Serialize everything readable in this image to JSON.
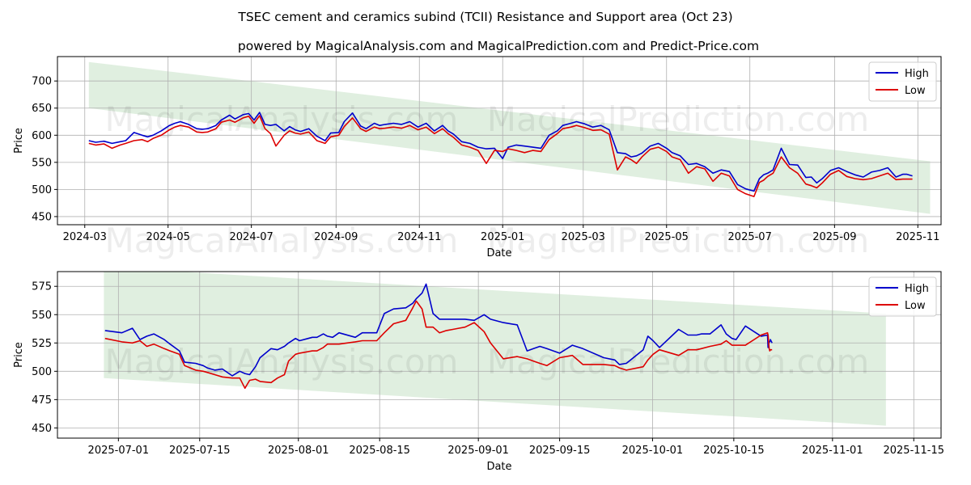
{
  "header": {
    "title": "TSEC cement and ceramics subind (TCII) Resistance and Support area (Oct 23)",
    "subtitle": "powered by MagicalAnalysis.com and MagicalPrediction.com and Predict-Price.com"
  },
  "watermark": {
    "left": "MagicalAnalysis.com",
    "right": "MagicalPrediction.com"
  },
  "colors": {
    "high": "#0000cc",
    "low": "#dd0000",
    "band": "#d5ead5",
    "grid": "#b0b0b0"
  },
  "chart_data": [
    {
      "type": "line",
      "xlabel": "Date",
      "ylabel": "Price",
      "grid": true,
      "legend": "top-right",
      "xlim": [
        -20,
        627
      ],
      "ylim": [
        435,
        745
      ],
      "xticks": [
        {
          "day": 0,
          "label": "2024-03"
        },
        {
          "day": 61,
          "label": "2024-05"
        },
        {
          "day": 122,
          "label": "2024-07"
        },
        {
          "day": 184,
          "label": "2024-09"
        },
        {
          "day": 245,
          "label": "2024-11"
        },
        {
          "day": 306,
          "label": "2025-01"
        },
        {
          "day": 365,
          "label": "2025-03"
        },
        {
          "day": 426,
          "label": "2025-05"
        },
        {
          "day": 487,
          "label": "2025-07"
        },
        {
          "day": 549,
          "label": "2025-09"
        },
        {
          "day": 610,
          "label": "2025-11"
        }
      ],
      "yticks": [
        450,
        500,
        550,
        600,
        650,
        700
      ],
      "band": {
        "x": [
          3,
          619
        ],
        "upper": [
          735,
          552
        ],
        "lower": [
          650,
          455
        ]
      },
      "series": [
        {
          "name": "High",
          "x": [
            3,
            8,
            14,
            20,
            26,
            30,
            36,
            42,
            46,
            50,
            56,
            62,
            66,
            70,
            76,
            82,
            86,
            90,
            96,
            100,
            106,
            110,
            116,
            120,
            124,
            128,
            132,
            136,
            140,
            146,
            150,
            154,
            158,
            164,
            170,
            176,
            180,
            186,
            190,
            196,
            202,
            206,
            212,
            216,
            220,
            226,
            232,
            238,
            244,
            250,
            256,
            262,
            266,
            270,
            276,
            282,
            288,
            294,
            300,
            306,
            310,
            316,
            322,
            328,
            334,
            340,
            346,
            350,
            356,
            360,
            366,
            372,
            378,
            384,
            390,
            396,
            400,
            404,
            408,
            414,
            420,
            426,
            430,
            436,
            442,
            448,
            454,
            460,
            466,
            472,
            478,
            484,
            490,
            494,
            497,
            500,
            504,
            510,
            516,
            522,
            528,
            532,
            536,
            540,
            546,
            552,
            558,
            564,
            570,
            576,
            582,
            588,
            594,
            599,
            602,
            606
          ],
          "values": [
            590,
            587,
            589,
            585,
            588,
            590,
            605,
            600,
            597,
            600,
            608,
            618,
            622,
            625,
            620,
            612,
            611,
            612,
            618,
            628,
            637,
            630,
            638,
            640,
            628,
            642,
            620,
            618,
            620,
            608,
            616,
            610,
            607,
            612,
            598,
            590,
            604,
            605,
            625,
            641,
            617,
            612,
            622,
            618,
            620,
            622,
            620,
            625,
            615,
            622,
            608,
            618,
            608,
            602,
            588,
            585,
            578,
            575,
            576,
            557,
            578,
            582,
            580,
            578,
            576,
            600,
            608,
            618,
            622,
            625,
            621,
            615,
            618,
            610,
            568,
            566,
            560,
            562,
            567,
            580,
            585,
            576,
            568,
            562,
            546,
            548,
            542,
            530,
            536,
            533,
            509,
            501,
            497,
            520,
            527,
            530,
            536,
            576,
            546,
            545,
            522,
            523,
            512,
            520,
            535,
            540,
            533,
            527,
            523,
            532,
            535,
            540,
            523,
            528,
            528,
            525
          ]
        },
        {
          "name": "Low",
          "x": [
            3,
            8,
            14,
            20,
            26,
            30,
            36,
            42,
            46,
            50,
            56,
            62,
            66,
            70,
            76,
            82,
            86,
            90,
            96,
            100,
            106,
            110,
            116,
            120,
            124,
            128,
            132,
            136,
            140,
            146,
            150,
            154,
            158,
            164,
            170,
            176,
            180,
            186,
            190,
            196,
            202,
            206,
            212,
            216,
            220,
            226,
            232,
            238,
            244,
            250,
            256,
            262,
            266,
            270,
            276,
            282,
            288,
            294,
            300,
            306,
            310,
            316,
            322,
            328,
            334,
            340,
            346,
            350,
            356,
            360,
            366,
            372,
            378,
            384,
            390,
            396,
            400,
            404,
            408,
            414,
            420,
            426,
            430,
            436,
            442,
            448,
            454,
            460,
            466,
            472,
            478,
            484,
            490,
            494,
            497,
            500,
            504,
            510,
            516,
            522,
            528,
            532,
            536,
            540,
            546,
            552,
            558,
            564,
            570,
            576,
            582,
            588,
            594,
            599,
            602,
            606
          ],
          "values": [
            585,
            582,
            584,
            576,
            582,
            585,
            590,
            592,
            588,
            594,
            600,
            610,
            615,
            618,
            615,
            606,
            605,
            606,
            612,
            624,
            628,
            624,
            632,
            635,
            622,
            636,
            612,
            603,
            580,
            600,
            608,
            604,
            602,
            606,
            590,
            585,
            597,
            600,
            616,
            632,
            612,
            607,
            615,
            612,
            613,
            615,
            613,
            618,
            610,
            615,
            603,
            612,
            603,
            596,
            582,
            578,
            572,
            548,
            572,
            570,
            575,
            572,
            568,
            572,
            570,
            592,
            603,
            612,
            615,
            618,
            614,
            609,
            610,
            602,
            536,
            560,
            555,
            548,
            560,
            574,
            578,
            570,
            560,
            555,
            530,
            542,
            538,
            515,
            530,
            525,
            500,
            492,
            487,
            513,
            517,
            524,
            530,
            560,
            540,
            530,
            510,
            507,
            503,
            512,
            528,
            535,
            524,
            520,
            518,
            520,
            525,
            530,
            518,
            519,
            519,
            519
          ]
        }
      ]
    },
    {
      "type": "line",
      "xlabel": "Date",
      "ylabel": "Price",
      "grid": true,
      "legend": "top-right",
      "xlim": [
        -10.5,
        141.7
      ],
      "ylim": [
        441,
        588
      ],
      "xticks": [
        {
          "day": 0,
          "label": "2025-07-01"
        },
        {
          "day": 14,
          "label": "2025-07-15"
        },
        {
          "day": 31,
          "label": "2025-08-01"
        },
        {
          "day": 45,
          "label": "2025-08-15"
        },
        {
          "day": 62,
          "label": "2025-09-01"
        },
        {
          "day": 76,
          "label": "2025-09-15"
        },
        {
          "day": 92,
          "label": "2025-10-01"
        },
        {
          "day": 106,
          "label": "2025-10-15"
        },
        {
          "day": 123,
          "label": "2025-11-01"
        },
        {
          "day": 137,
          "label": "2025-11-15"
        }
      ],
      "yticks": [
        450,
        475,
        500,
        525,
        550,
        575
      ],
      "band": {
        "x": [
          -2.5,
          132.2
        ],
        "upper": [
          592,
          551
        ],
        "lower": [
          494,
          452
        ]
      },
      "series": [
        {
          "name": "High",
          "x": [
            -2.3,
            0.6,
            2.4,
            3.7,
            4.9,
            6.1,
            7.9,
            8.9,
            10.5,
            11.4,
            13.3,
            14.6,
            15.3,
            16.6,
            17.9,
            19.6,
            20.9,
            21.8,
            22.6,
            23.6,
            24.4,
            26.3,
            27.4,
            28.6,
            29.3,
            30.5,
            31.2,
            33.4,
            34.2,
            35.3,
            36.0,
            36.9,
            38.0,
            40.8,
            42.0,
            43.0,
            44.5,
            45.8,
            47.4,
            49.5,
            50.7,
            51.3,
            52.3,
            53.0,
            54.2,
            55.3,
            56.5,
            57.6,
            58.6,
            59.7,
            61.3,
            63.0,
            64.1,
            66.3,
            68.7,
            70.4,
            71.5,
            72.6,
            73.8,
            76.0,
            78.2,
            80.0,
            83.6,
            85.5,
            86.3,
            87.5,
            90.4,
            91.2,
            92.1,
            93.2,
            96.5,
            98.1,
            99.6,
            100.4,
            101.9,
            103.8,
            104.7,
            105.7,
            106.4,
            108.0,
            110.7,
            111.8,
            111.9,
            112.1,
            112.2,
            112.3,
            112.6
          ],
          "values": [
            536,
            534,
            538,
            528,
            531,
            533,
            528,
            524,
            518,
            508,
            507,
            505,
            503,
            501,
            502,
            496,
            500,
            498,
            497,
            504,
            512,
            520,
            519,
            522,
            525,
            529,
            527,
            530,
            530,
            533,
            531,
            530,
            534,
            530,
            534,
            534,
            534,
            551,
            555,
            556,
            560,
            564,
            569,
            577,
            551,
            546,
            546,
            546,
            546,
            546,
            545,
            550,
            546,
            543,
            541,
            518,
            520,
            522,
            520,
            516,
            523,
            520,
            512,
            510,
            506,
            507,
            519,
            531,
            527,
            521,
            537,
            532,
            532,
            533,
            533,
            541,
            533,
            529,
            528,
            540,
            531,
            532,
            521,
            526,
            526,
            528,
            525
          ]
        },
        {
          "name": "Low",
          "x": [
            -2.3,
            0.6,
            2.4,
            3.7,
            4.9,
            6.1,
            7.9,
            8.9,
            10.5,
            11.4,
            13.3,
            14.6,
            15.3,
            16.6,
            17.9,
            19.6,
            20.9,
            21.8,
            22.6,
            23.6,
            24.4,
            26.3,
            27.4,
            28.6,
            29.3,
            30.5,
            31.2,
            33.4,
            34.2,
            35.3,
            36.0,
            36.9,
            38.0,
            40.8,
            42.0,
            43.0,
            44.5,
            45.8,
            47.4,
            49.5,
            50.7,
            51.3,
            52.3,
            53.0,
            54.2,
            55.3,
            56.5,
            57.6,
            58.6,
            59.7,
            61.3,
            63.0,
            64.1,
            66.3,
            68.7,
            70.4,
            71.5,
            72.6,
            73.8,
            76.0,
            78.2,
            80.0,
            83.6,
            85.5,
            86.3,
            87.5,
            90.4,
            91.2,
            92.1,
            93.2,
            96.5,
            98.1,
            99.6,
            100.4,
            101.9,
            103.8,
            104.7,
            105.7,
            106.4,
            108.0,
            110.7,
            111.8,
            111.9,
            112.1,
            112.2,
            112.3,
            112.6
          ],
          "values": [
            529,
            526,
            525,
            527,
            522,
            524,
            520,
            518,
            515,
            505,
            501,
            500,
            499,
            497,
            495,
            494,
            494,
            485,
            492,
            493,
            491,
            490,
            494,
            497,
            509,
            515,
            516,
            518,
            518,
            521,
            524,
            524,
            524,
            526,
            527,
            527,
            527,
            534,
            542,
            545,
            556,
            562,
            555,
            539,
            539,
            534,
            536,
            537,
            538,
            539,
            543,
            535,
            525,
            511,
            513,
            511,
            509,
            507,
            505,
            512,
            514,
            506,
            506,
            505,
            503,
            501,
            504,
            510,
            515,
            519,
            514,
            519,
            519,
            520,
            522,
            524,
            527,
            523,
            523,
            523,
            532,
            534,
            532,
            520,
            518,
            519,
            519
          ]
        }
      ]
    }
  ]
}
